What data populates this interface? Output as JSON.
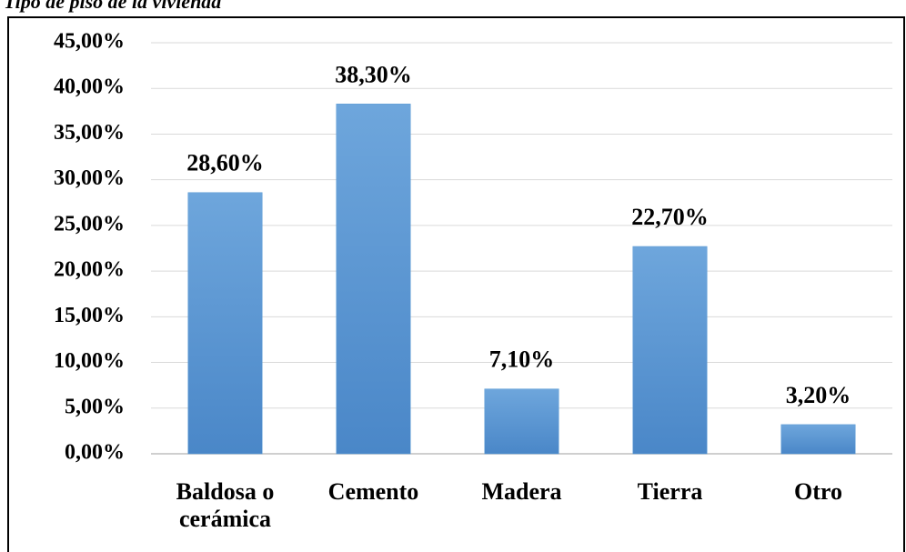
{
  "chart_data": {
    "type": "bar",
    "title": "Tipo de piso de la vivienda",
    "categories": [
      "Baldosa o cerámica",
      "Cemento",
      "Madera",
      "Tierra",
      "Otro"
    ],
    "values": [
      28.6,
      38.3,
      7.1,
      22.7,
      3.2
    ],
    "value_labels": [
      "28,60%",
      "38,30%",
      "7,10%",
      "22,70%",
      "3,20%"
    ],
    "color": "#5b9bd5",
    "ylim": [
      0,
      45
    ],
    "yticks": [
      {
        "value": 0,
        "label": "0,00%"
      },
      {
        "value": 5,
        "label": "5,00%"
      },
      {
        "value": 10,
        "label": "10,00%"
      },
      {
        "value": 15,
        "label": "15,00%"
      },
      {
        "value": 20,
        "label": "20,00%"
      },
      {
        "value": 25,
        "label": "25,00%"
      },
      {
        "value": 30,
        "label": "30,00%"
      },
      {
        "value": 35,
        "label": "35,00%"
      },
      {
        "value": 40,
        "label": "40,00%"
      },
      {
        "value": 45,
        "label": "45,00%"
      }
    ],
    "grid": true
  }
}
